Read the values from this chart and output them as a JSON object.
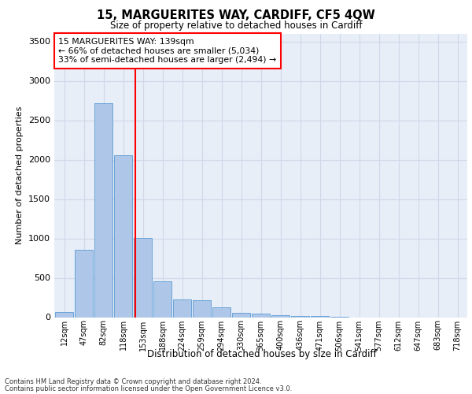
{
  "title_line1": "15, MARGUERITES WAY, CARDIFF, CF5 4QW",
  "title_line2": "Size of property relative to detached houses in Cardiff",
  "xlabel": "Distribution of detached houses by size in Cardiff",
  "ylabel": "Number of detached properties",
  "categories": [
    "12sqm",
    "47sqm",
    "82sqm",
    "118sqm",
    "153sqm",
    "188sqm",
    "224sqm",
    "259sqm",
    "294sqm",
    "330sqm",
    "365sqm",
    "400sqm",
    "436sqm",
    "471sqm",
    "506sqm",
    "541sqm",
    "577sqm",
    "612sqm",
    "647sqm",
    "683sqm",
    "718sqm"
  ],
  "values": [
    65,
    855,
    2720,
    2060,
    1010,
    455,
    225,
    215,
    130,
    60,
    50,
    30,
    20,
    20,
    5,
    0,
    0,
    0,
    0,
    0,
    0
  ],
  "bar_color": "#aec6e8",
  "bar_edge_color": "#5a9bd5",
  "grid_color": "#d0d8e8",
  "background_color": "#e8eef8",
  "vline_color": "red",
  "annotation_text": "15 MARGUERITES WAY: 139sqm\n← 66% of detached houses are smaller (5,034)\n33% of semi-detached houses are larger (2,494) →",
  "annotation_box_color": "red",
  "annotation_bg": "white",
  "ylim": [
    0,
    3600
  ],
  "yticks": [
    0,
    500,
    1000,
    1500,
    2000,
    2500,
    3000,
    3500
  ],
  "footer_line1": "Contains HM Land Registry data © Crown copyright and database right 2024.",
  "footer_line2": "Contains public sector information licensed under the Open Government Licence v3.0."
}
